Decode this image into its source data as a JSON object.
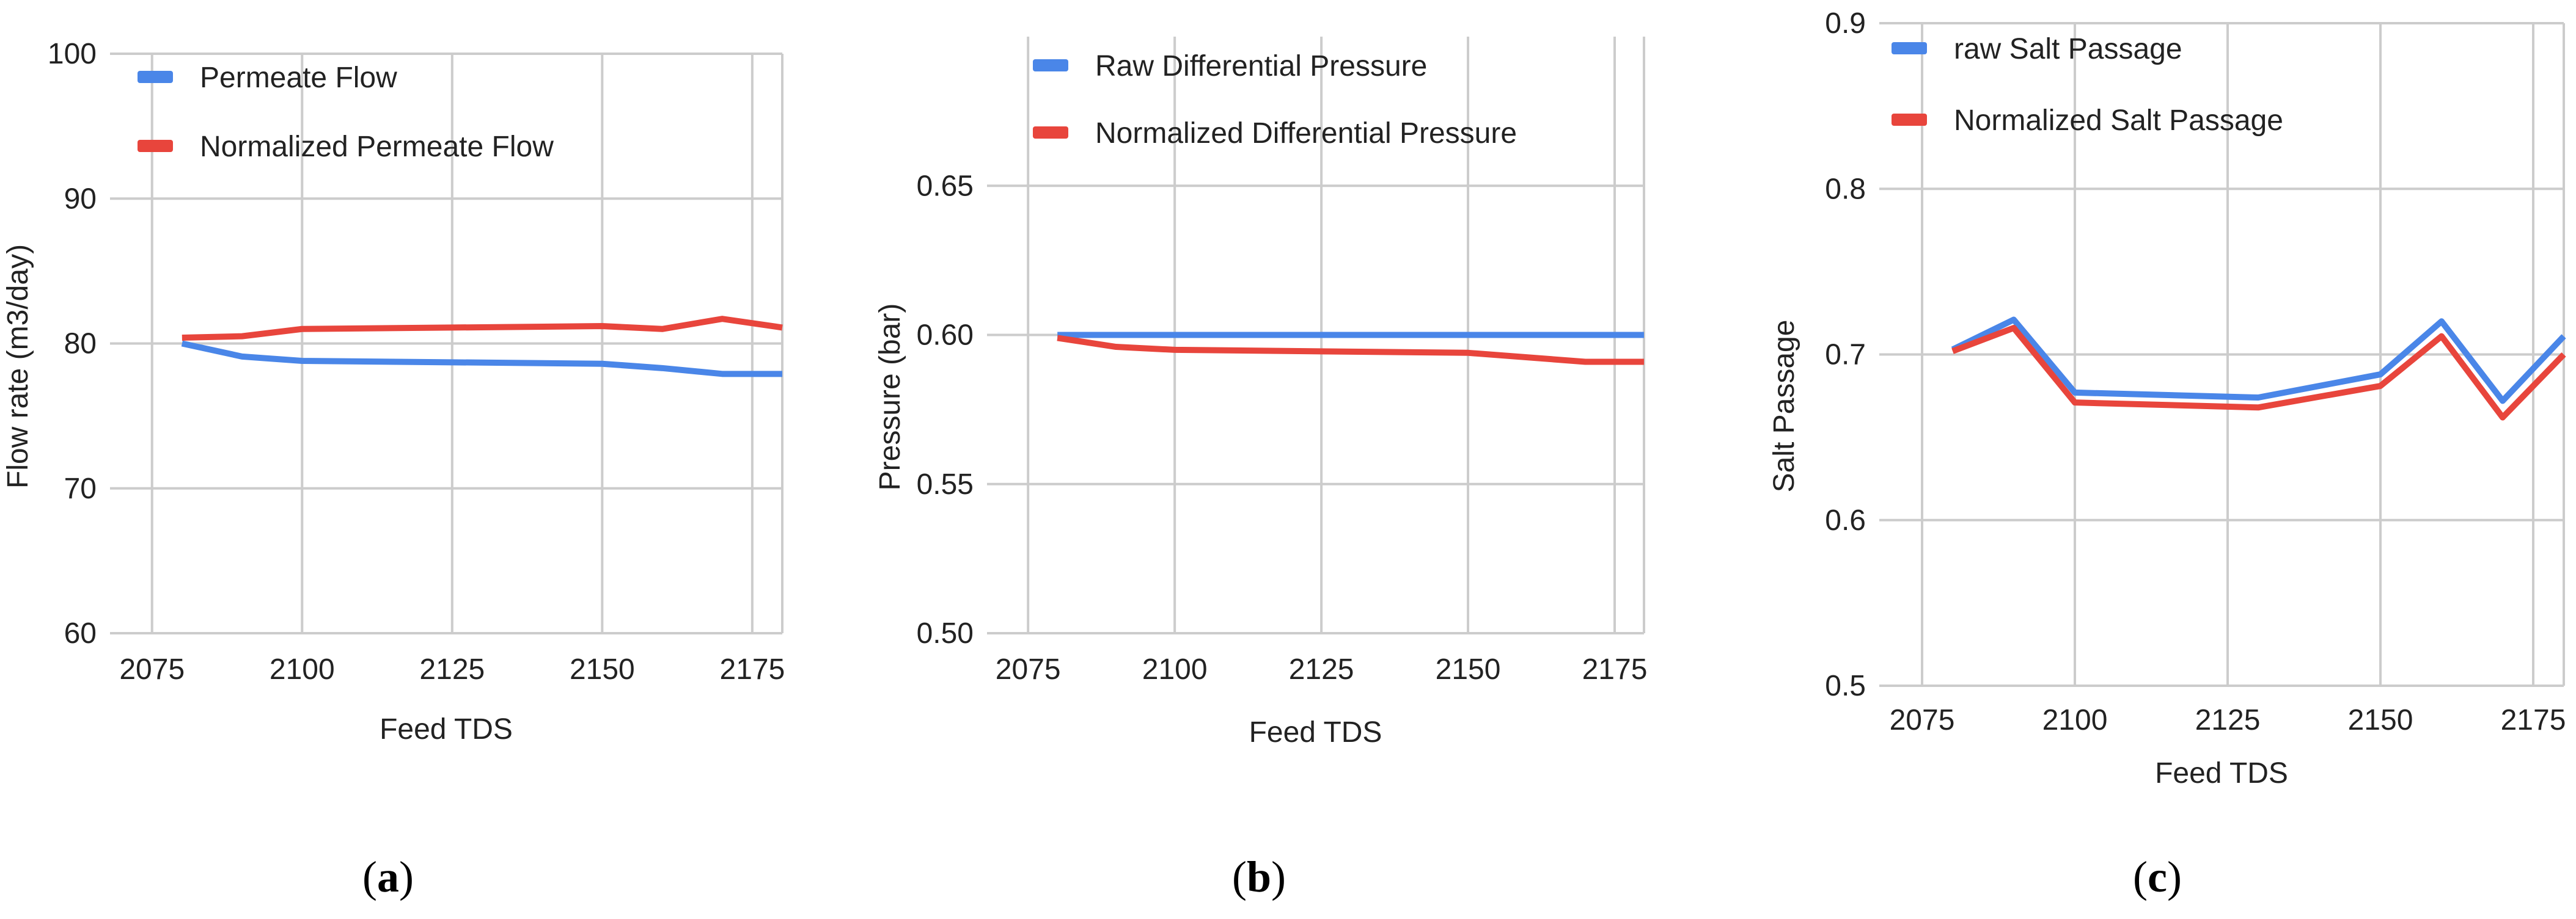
{
  "colors": {
    "raw": "#4a86e8",
    "normalized": "#e8453c",
    "grid": "#cccccc",
    "text": "#222222"
  },
  "chart_data": [
    {
      "type": "line",
      "panel": "a",
      "caption": "a",
      "xlabel": "Feed TDS",
      "ylabel": "Flow rate (m3/day)",
      "xlim": [
        2068,
        2180
      ],
      "ylim": [
        60,
        100
      ],
      "xticks": [
        2075,
        2100,
        2125,
        2150,
        2175
      ],
      "yticks": [
        60,
        70,
        80,
        90,
        100
      ],
      "legend_position": "top-left",
      "series": [
        {
          "name": "Permeate Flow",
          "color": "#4a86e8",
          "x": [
            2080,
            2090,
            2100,
            2125,
            2150,
            2160,
            2170,
            2180
          ],
          "y": [
            80.0,
            79.1,
            78.8,
            78.7,
            78.6,
            78.3,
            77.9,
            77.9
          ]
        },
        {
          "name": "Normalized Permeate Flow",
          "color": "#e8453c",
          "x": [
            2080,
            2090,
            2100,
            2125,
            2150,
            2160,
            2170,
            2180
          ],
          "y": [
            80.4,
            80.5,
            81.0,
            81.1,
            81.2,
            81.0,
            81.7,
            81.1
          ]
        }
      ]
    },
    {
      "type": "line",
      "panel": "b",
      "caption": "b",
      "xlabel": "Feed TDS",
      "ylabel": "Pressure (bar)",
      "xlim": [
        2068,
        2180
      ],
      "ylim": [
        0.5,
        0.7
      ],
      "xticks": [
        2075,
        2100,
        2125,
        2150,
        2175
      ],
      "yticks": [
        0.5,
        0.55,
        0.6,
        0.65
      ],
      "ytick_labels": [
        "0.50",
        "0.55",
        "0.60",
        "0.65"
      ],
      "legend_position": "top-left",
      "series": [
        {
          "name": "Raw Differential Pressure",
          "color": "#4a86e8",
          "x": [
            2080,
            2180
          ],
          "y": [
            0.6,
            0.6
          ]
        },
        {
          "name": "Normalized Differential Pressure",
          "color": "#e8453c",
          "x": [
            2080,
            2090,
            2100,
            2150,
            2170,
            2180
          ],
          "y": [
            0.599,
            0.596,
            0.595,
            0.594,
            0.591,
            0.591
          ]
        }
      ]
    },
    {
      "type": "line",
      "panel": "c",
      "caption": "c",
      "xlabel": "Feed TDS",
      "ylabel": "Salt Passage",
      "xlim": [
        2068,
        2180
      ],
      "ylim": [
        0.5,
        0.9
      ],
      "xticks": [
        2075,
        2100,
        2125,
        2150,
        2175
      ],
      "yticks": [
        0.5,
        0.6,
        0.7,
        0.8,
        0.9
      ],
      "legend_position": "top-left",
      "series": [
        {
          "name": "raw Salt Passage",
          "color": "#4a86e8",
          "x": [
            2080,
            2090,
            2100,
            2130,
            2150,
            2160,
            2170,
            2180
          ],
          "y": [
            0.703,
            0.721,
            0.677,
            0.674,
            0.688,
            0.72,
            0.672,
            0.711
          ]
        },
        {
          "name": "Normalized Salt Passage",
          "color": "#e8453c",
          "x": [
            2080,
            2090,
            2100,
            2130,
            2150,
            2160,
            2170,
            2180
          ],
          "y": [
            0.702,
            0.716,
            0.671,
            0.668,
            0.681,
            0.711,
            0.662,
            0.7
          ]
        }
      ]
    }
  ]
}
